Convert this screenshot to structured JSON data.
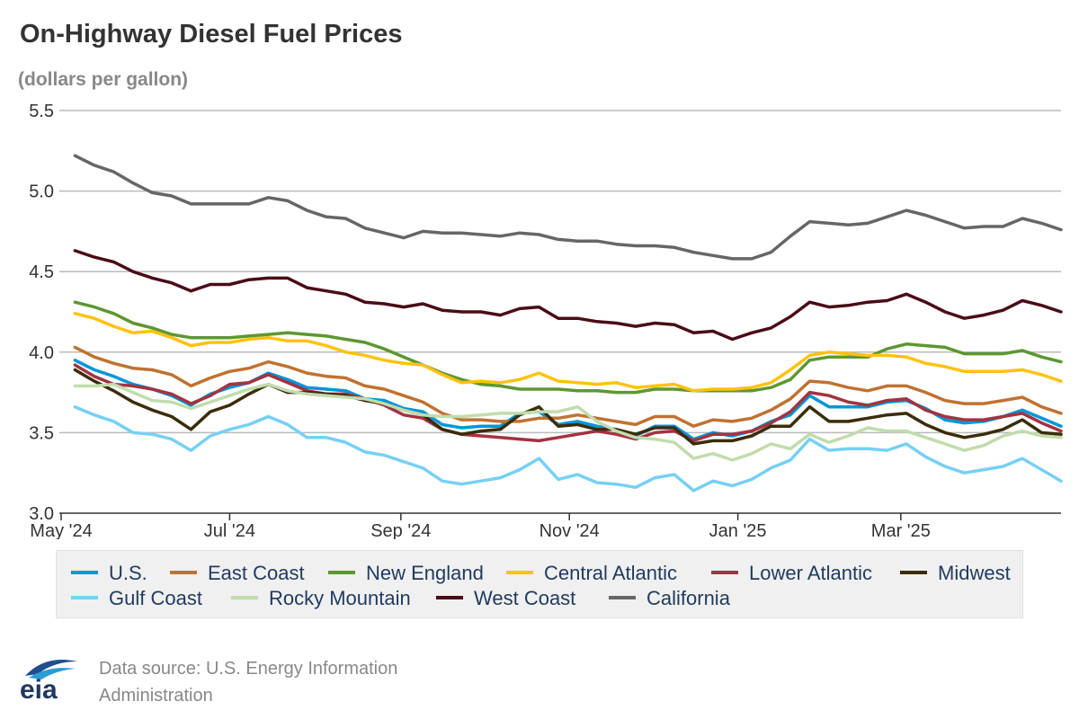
{
  "header": {
    "title": "On-Highway Diesel Fuel Prices",
    "subtitle": "(dollars per gallon)"
  },
  "footer": {
    "logo_text": "eia",
    "source_line1": "Data source: U.S. Energy Information",
    "source_line2": "Administration"
  },
  "chart_data": {
    "type": "line",
    "ylim": [
      3.0,
      5.5
    ],
    "yticks": [
      3.0,
      3.5,
      4.0,
      4.5,
      5.0,
      5.5
    ],
    "ytick_labels": [
      "3.0",
      "3.5",
      "4.0",
      "4.5",
      "5.0",
      "5.5"
    ],
    "xlim": [
      "2024-05-01",
      "2025-04-28"
    ],
    "xticks": [
      "2024-05-01",
      "2024-07-01",
      "2024-09-01",
      "2024-11-01",
      "2025-01-01",
      "2025-03-01"
    ],
    "xtick_labels": [
      "May '24",
      "Jul '24",
      "Sep '24",
      "Nov '24",
      "Jan '25",
      "Mar '25"
    ],
    "grid": true,
    "legend_position": "bottom",
    "x": [
      "2024-05-06",
      "2024-05-13",
      "2024-05-20",
      "2024-05-27",
      "2024-06-03",
      "2024-06-10",
      "2024-06-17",
      "2024-06-24",
      "2024-07-01",
      "2024-07-08",
      "2024-07-15",
      "2024-07-22",
      "2024-07-29",
      "2024-08-05",
      "2024-08-12",
      "2024-08-19",
      "2024-08-26",
      "2024-09-02",
      "2024-09-09",
      "2024-09-16",
      "2024-09-23",
      "2024-09-30",
      "2024-10-07",
      "2024-10-14",
      "2024-10-21",
      "2024-10-28",
      "2024-11-04",
      "2024-11-11",
      "2024-11-18",
      "2024-11-25",
      "2024-12-02",
      "2024-12-09",
      "2024-12-16",
      "2024-12-23",
      "2024-12-30",
      "2025-01-06",
      "2025-01-13",
      "2025-01-20",
      "2025-01-27",
      "2025-02-03",
      "2025-02-10",
      "2025-02-17",
      "2025-02-24",
      "2025-03-03",
      "2025-03-10",
      "2025-03-17",
      "2025-03-24",
      "2025-03-31",
      "2025-04-07",
      "2025-04-14",
      "2025-04-21",
      "2025-04-28"
    ],
    "series": [
      {
        "name": "U.S.",
        "color": "#0096d7",
        "values": [
          3.95,
          3.89,
          3.85,
          3.8,
          3.77,
          3.73,
          3.67,
          3.74,
          3.78,
          3.81,
          3.87,
          3.83,
          3.78,
          3.77,
          3.76,
          3.71,
          3.7,
          3.65,
          3.63,
          3.55,
          3.53,
          3.54,
          3.54,
          3.62,
          3.63,
          3.55,
          3.57,
          3.54,
          3.52,
          3.48,
          3.54,
          3.54,
          3.46,
          3.5,
          3.48,
          3.51,
          3.57,
          3.61,
          3.73,
          3.66,
          3.66,
          3.66,
          3.69,
          3.7,
          3.65,
          3.58,
          3.56,
          3.57,
          3.6,
          3.64,
          3.59,
          3.54
        ]
      },
      {
        "name": "East Coast",
        "color": "#c07231",
        "values": [
          4.03,
          3.97,
          3.93,
          3.9,
          3.89,
          3.86,
          3.79,
          3.84,
          3.88,
          3.9,
          3.94,
          3.91,
          3.87,
          3.85,
          3.84,
          3.79,
          3.77,
          3.73,
          3.69,
          3.62,
          3.58,
          3.58,
          3.57,
          3.57,
          3.59,
          3.59,
          3.61,
          3.59,
          3.57,
          3.55,
          3.6,
          3.6,
          3.54,
          3.58,
          3.57,
          3.59,
          3.64,
          3.71,
          3.82,
          3.81,
          3.78,
          3.76,
          3.79,
          3.79,
          3.75,
          3.7,
          3.68,
          3.68,
          3.7,
          3.72,
          3.66,
          3.62
        ]
      },
      {
        "name": "New England",
        "color": "#5d9732",
        "values": [
          4.31,
          4.28,
          4.24,
          4.18,
          4.15,
          4.11,
          4.09,
          4.09,
          4.09,
          4.1,
          4.11,
          4.12,
          4.11,
          4.1,
          4.08,
          4.06,
          4.02,
          3.97,
          3.92,
          3.87,
          3.83,
          3.8,
          3.79,
          3.77,
          3.77,
          3.77,
          3.76,
          3.76,
          3.75,
          3.75,
          3.77,
          3.77,
          3.76,
          3.76,
          3.76,
          3.76,
          3.78,
          3.83,
          3.95,
          3.97,
          3.97,
          3.97,
          4.02,
          4.05,
          4.04,
          4.03,
          3.99,
          3.99,
          3.99,
          4.01,
          3.97,
          3.94
        ]
      },
      {
        "name": "Central Atlantic",
        "color": "#ffc20e",
        "values": [
          4.24,
          4.21,
          4.16,
          4.12,
          4.13,
          4.09,
          4.04,
          4.06,
          4.06,
          4.08,
          4.09,
          4.07,
          4.07,
          4.04,
          4.0,
          3.98,
          3.95,
          3.93,
          3.92,
          3.86,
          3.81,
          3.82,
          3.81,
          3.83,
          3.87,
          3.82,
          3.81,
          3.8,
          3.81,
          3.78,
          3.79,
          3.8,
          3.76,
          3.77,
          3.77,
          3.78,
          3.81,
          3.89,
          3.98,
          4.0,
          3.99,
          3.98,
          3.98,
          3.97,
          3.93,
          3.91,
          3.88,
          3.88,
          3.88,
          3.89,
          3.86,
          3.82
        ]
      },
      {
        "name": "Lower Atlantic",
        "color": "#a33340",
        "values": [
          3.92,
          3.85,
          3.8,
          3.79,
          3.77,
          3.74,
          3.68,
          3.73,
          3.8,
          3.81,
          3.86,
          3.81,
          3.76,
          3.74,
          3.74,
          3.71,
          3.67,
          3.61,
          3.59,
          3.52,
          3.49,
          3.48,
          3.47,
          3.46,
          3.45,
          3.47,
          3.49,
          3.51,
          3.49,
          3.46,
          3.5,
          3.51,
          3.45,
          3.49,
          3.49,
          3.51,
          3.56,
          3.63,
          3.75,
          3.73,
          3.69,
          3.67,
          3.7,
          3.71,
          3.64,
          3.6,
          3.58,
          3.58,
          3.6,
          3.62,
          3.56,
          3.51
        ]
      },
      {
        "name": "Midwest",
        "color": "#3b2c0b",
        "values": [
          3.89,
          3.82,
          3.76,
          3.69,
          3.64,
          3.6,
          3.52,
          3.63,
          3.67,
          3.74,
          3.8,
          3.75,
          3.75,
          3.74,
          3.73,
          3.7,
          3.68,
          3.64,
          3.61,
          3.52,
          3.49,
          3.51,
          3.52,
          3.61,
          3.66,
          3.54,
          3.55,
          3.52,
          3.52,
          3.49,
          3.53,
          3.53,
          3.43,
          3.45,
          3.45,
          3.48,
          3.54,
          3.54,
          3.66,
          3.57,
          3.57,
          3.59,
          3.61,
          3.62,
          3.55,
          3.5,
          3.47,
          3.49,
          3.52,
          3.58,
          3.5,
          3.49
        ]
      },
      {
        "name": "Gulf Coast",
        "color": "#76d0f5",
        "values": [
          3.66,
          3.61,
          3.57,
          3.5,
          3.49,
          3.46,
          3.39,
          3.48,
          3.52,
          3.55,
          3.6,
          3.55,
          3.47,
          3.47,
          3.44,
          3.38,
          3.36,
          3.32,
          3.28,
          3.2,
          3.18,
          3.2,
          3.22,
          3.27,
          3.34,
          3.21,
          3.24,
          3.19,
          3.18,
          3.16,
          3.22,
          3.24,
          3.14,
          3.2,
          3.17,
          3.21,
          3.28,
          3.33,
          3.46,
          3.39,
          3.4,
          3.4,
          3.39,
          3.43,
          3.35,
          3.29,
          3.25,
          3.27,
          3.29,
          3.34,
          3.27,
          3.2
        ]
      },
      {
        "name": "Rocky Mountain",
        "color": "#c1dcac",
        "values": [
          3.79,
          3.79,
          3.8,
          3.75,
          3.7,
          3.69,
          3.65,
          3.69,
          3.73,
          3.77,
          3.8,
          3.76,
          3.74,
          3.73,
          3.72,
          3.71,
          3.68,
          3.64,
          3.61,
          3.6,
          3.6,
          3.61,
          3.62,
          3.62,
          3.63,
          3.63,
          3.66,
          3.57,
          3.51,
          3.47,
          3.46,
          3.44,
          3.34,
          3.37,
          3.33,
          3.37,
          3.43,
          3.4,
          3.49,
          3.44,
          3.48,
          3.53,
          3.51,
          3.51,
          3.47,
          3.43,
          3.39,
          3.42,
          3.48,
          3.51,
          3.48,
          3.47
        ]
      },
      {
        "name": "West Coast",
        "color": "#4a0c16",
        "values": [
          4.63,
          4.59,
          4.56,
          4.5,
          4.46,
          4.43,
          4.38,
          4.42,
          4.42,
          4.45,
          4.46,
          4.46,
          4.4,
          4.38,
          4.36,
          4.31,
          4.3,
          4.28,
          4.3,
          4.26,
          4.25,
          4.25,
          4.23,
          4.27,
          4.28,
          4.21,
          4.21,
          4.19,
          4.18,
          4.16,
          4.18,
          4.17,
          4.12,
          4.13,
          4.08,
          4.12,
          4.15,
          4.22,
          4.31,
          4.28,
          4.29,
          4.31,
          4.32,
          4.36,
          4.31,
          4.25,
          4.21,
          4.23,
          4.26,
          4.32,
          4.29,
          4.25
        ]
      },
      {
        "name": "California",
        "color": "#666666",
        "values": [
          5.22,
          5.16,
          5.12,
          5.05,
          4.99,
          4.97,
          4.92,
          4.92,
          4.92,
          4.92,
          4.96,
          4.94,
          4.88,
          4.84,
          4.83,
          4.77,
          4.74,
          4.71,
          4.75,
          4.74,
          4.74,
          4.73,
          4.72,
          4.74,
          4.73,
          4.7,
          4.69,
          4.69,
          4.67,
          4.66,
          4.66,
          4.65,
          4.62,
          4.6,
          4.58,
          4.58,
          4.62,
          4.72,
          4.81,
          4.8,
          4.79,
          4.8,
          4.84,
          4.88,
          4.85,
          4.81,
          4.77,
          4.78,
          4.78,
          4.83,
          4.8,
          4.76
        ]
      }
    ]
  }
}
